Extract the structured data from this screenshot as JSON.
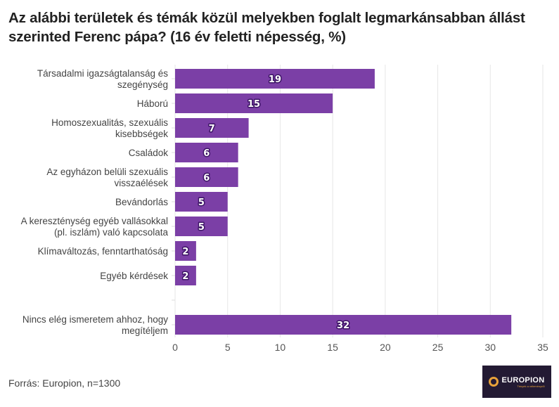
{
  "title": "Az alábbi területek és témák közül melyekben foglalt legmarkánsabban állást szerinted Ferenc pápa? (16 év feletti népesség, %)",
  "source": "Forrás: Europion, n=1300",
  "logo": {
    "name": "EUROPION",
    "tagline": "Tények a véleményről"
  },
  "colors": {
    "bar": "#7b3fa6",
    "label_outline": "#3d1466",
    "grid": "#e6e6e6",
    "logo_bg": "#231a33",
    "logo_accent": "#e8a23a"
  },
  "chart_data": {
    "type": "bar",
    "orientation": "horizontal",
    "title": "Az alábbi területek és témák közül melyekben foglalt legmarkánsabban állást szerinted Ferenc pápa? (16 év feletti népesség, %)",
    "xlabel": "",
    "ylabel": "",
    "xlim": [
      0,
      35
    ],
    "xticks": [
      0,
      5,
      10,
      15,
      20,
      25,
      30,
      35
    ],
    "grid": true,
    "legend": "none",
    "categories": [
      [
        "Társadalmi igazságtalanság és",
        "szegénység"
      ],
      [
        "Háború"
      ],
      [
        "Homoszexualitás, szexuális",
        "kisebbségek"
      ],
      [
        "Családok"
      ],
      [
        "Az egyházon belüli szexuális",
        "visszaélések"
      ],
      [
        "Bevándorlás"
      ],
      [
        "A kereszténység egyéb vallásokkal",
        "(pl. iszlám) való kapcsolata"
      ],
      [
        "Klímaváltozás, fenntarthatóság"
      ],
      [
        "Egyéb kérdések"
      ],
      [
        ""
      ],
      [
        "Nincs elég ismeretem ahhoz, hogy",
        "megítéljem"
      ]
    ],
    "values": [
      19,
      15,
      7,
      6,
      6,
      5,
      5,
      2,
      2,
      null,
      32
    ],
    "value_labels": [
      "19",
      "15",
      "7",
      "6",
      "6",
      "5",
      "5",
      "2",
      "2",
      "",
      "32"
    ]
  }
}
